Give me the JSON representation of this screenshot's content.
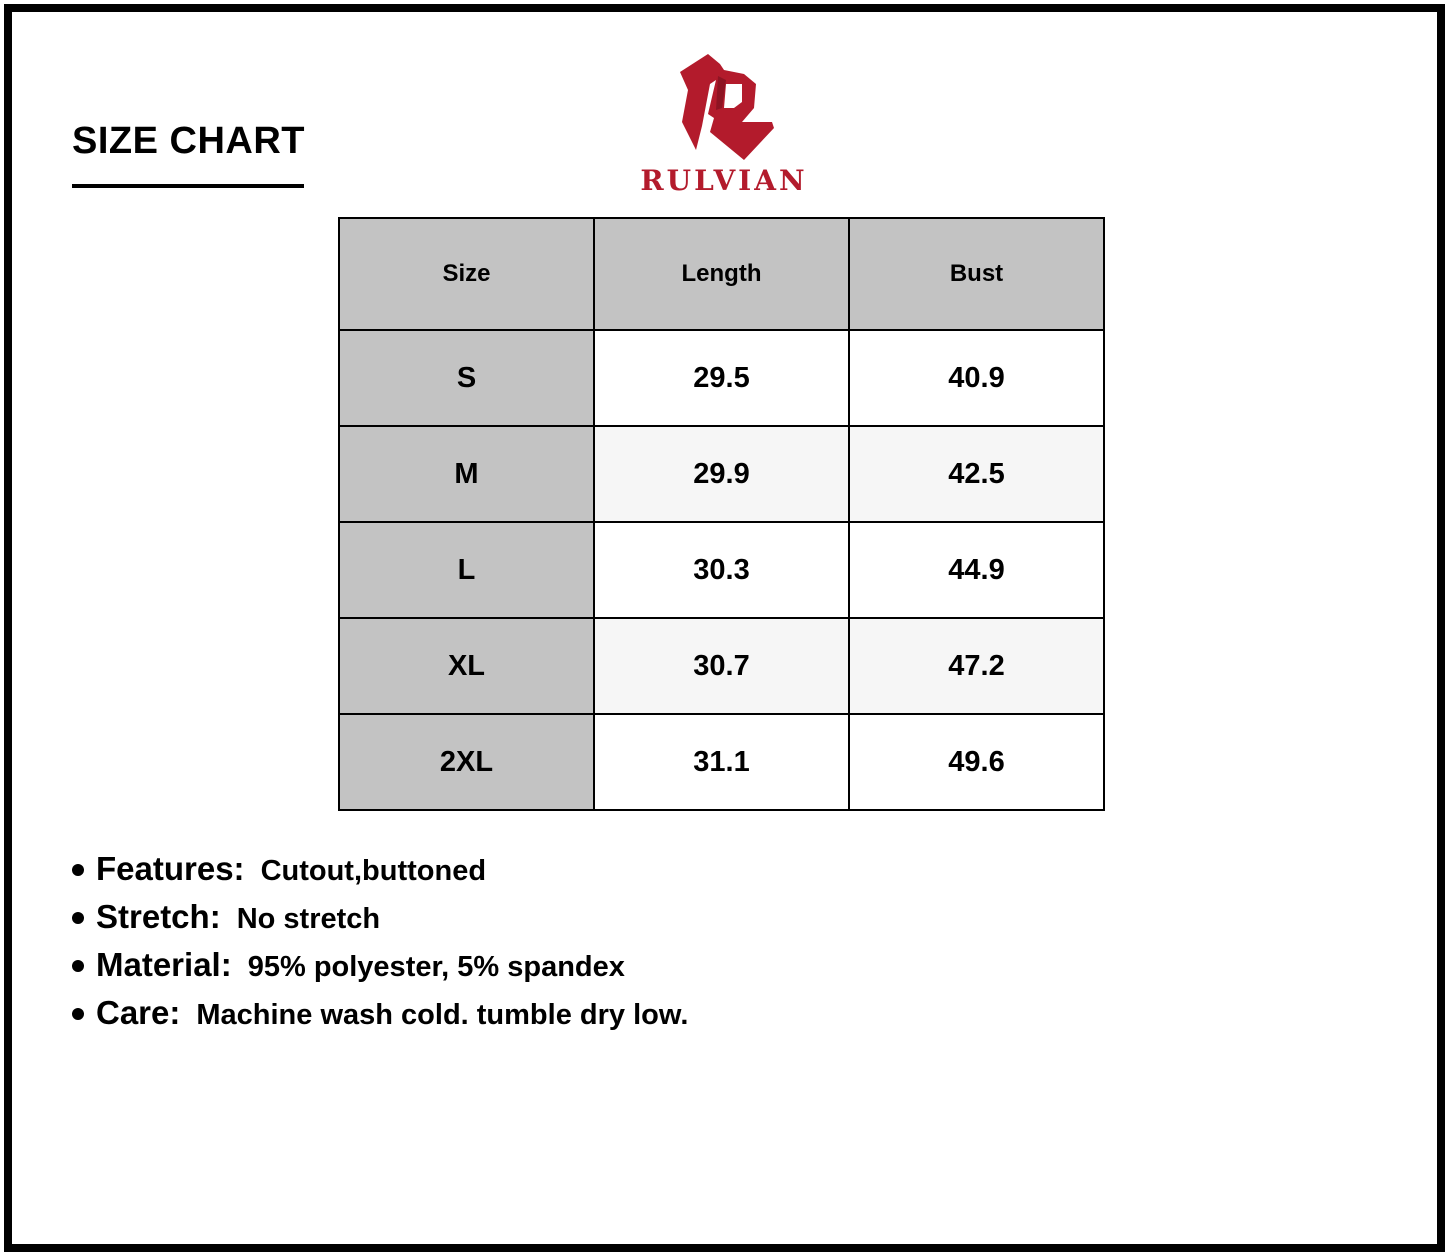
{
  "title": "SIZE CHART",
  "brand": {
    "name": "RULVIAN",
    "color": "#b31b2c"
  },
  "table": {
    "headers": [
      "Size",
      "Length",
      "Bust"
    ],
    "rows": [
      [
        "S",
        "29.5",
        "40.9"
      ],
      [
        "M",
        "29.9",
        "42.5"
      ],
      [
        "L",
        "30.3",
        "44.9"
      ],
      [
        "XL",
        "30.7",
        "47.2"
      ],
      [
        "2XL",
        "31.1",
        "49.6"
      ]
    ]
  },
  "specs": [
    {
      "label": "Features:",
      "value": "Cutout,buttoned"
    },
    {
      "label": "Stretch:",
      "value": "No stretch"
    },
    {
      "label": "Material:",
      "value": "95% polyester, 5% spandex"
    },
    {
      "label": "Care:",
      "value": "Machine wash cold. tumble dry low."
    }
  ]
}
